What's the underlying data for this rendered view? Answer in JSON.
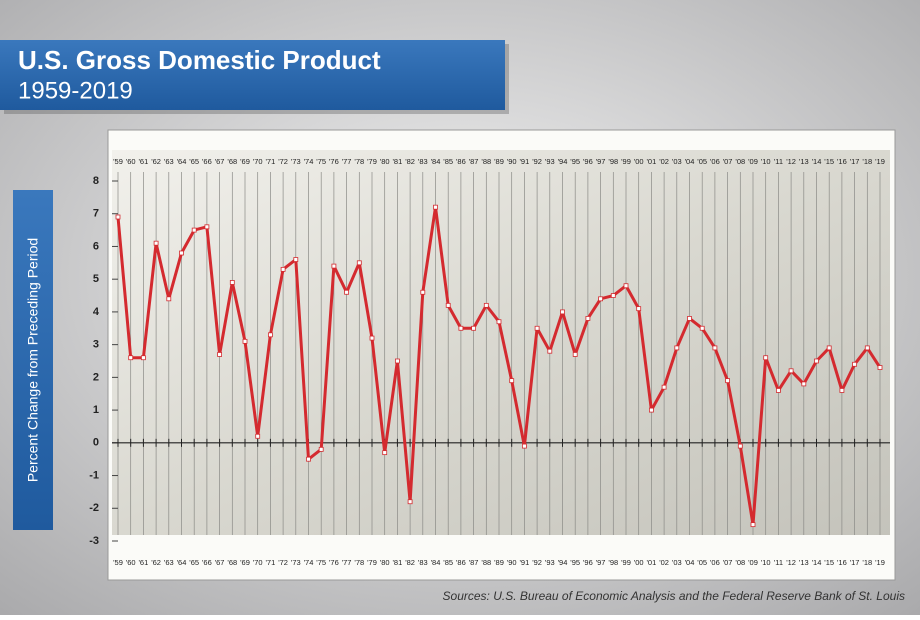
{
  "chart_data": {
    "type": "line",
    "title": "U.S. Gross Domestic Product",
    "subtitle": "1959-2019",
    "y_label": "Percent Change from Preceding Period",
    "source": "Sources: U.S. Bureau of Economic Analysis and the Federal Reserve Bank of St. Louis",
    "categories": [
      "'59",
      "'60",
      "'61",
      "'62",
      "'63",
      "'64",
      "'65",
      "'66",
      "'67",
      "'68",
      "'69",
      "'70",
      "'71",
      "'72",
      "'73",
      "'74",
      "'75",
      "'76",
      "'77",
      "'78",
      "'79",
      "'80",
      "'81",
      "'82",
      "'83",
      "'84",
      "'85",
      "'86",
      "'87",
      "'88",
      "'89",
      "'90",
      "'91",
      "'92",
      "'93",
      "'94",
      "'95",
      "'96",
      "'97",
      "'98",
      "'99",
      "'00",
      "'01",
      "'02",
      "'03",
      "'04",
      "'05",
      "'06",
      "'07",
      "'08",
      "'09",
      "'10",
      "'11",
      "'12",
      "'13",
      "'14",
      "'15",
      "'16",
      "'17",
      "'18",
      "'19"
    ],
    "values": [
      6.9,
      2.6,
      2.6,
      6.1,
      4.4,
      5.8,
      6.5,
      6.6,
      2.7,
      4.9,
      3.1,
      0.2,
      3.3,
      5.3,
      5.6,
      -0.5,
      -0.2,
      5.4,
      4.6,
      5.5,
      3.2,
      -0.3,
      2.5,
      -1.8,
      4.6,
      7.2,
      4.2,
      3.5,
      3.5,
      4.2,
      3.7,
      1.9,
      -0.1,
      3.5,
      2.8,
      4.0,
      2.7,
      3.8,
      4.4,
      4.5,
      4.8,
      4.1,
      1.0,
      1.7,
      2.9,
      3.8,
      3.5,
      2.9,
      1.9,
      -0.1,
      -2.5,
      2.6,
      1.6,
      2.2,
      1.8,
      2.5,
      2.9,
      1.6,
      2.4,
      2.9,
      2.3
    ],
    "color": "#d42a2f",
    "ylim": [
      -3,
      8
    ],
    "yticks": [
      -3,
      -2,
      -1,
      0,
      1,
      2,
      3,
      4,
      5,
      6,
      7,
      8
    ],
    "grid": true
  }
}
